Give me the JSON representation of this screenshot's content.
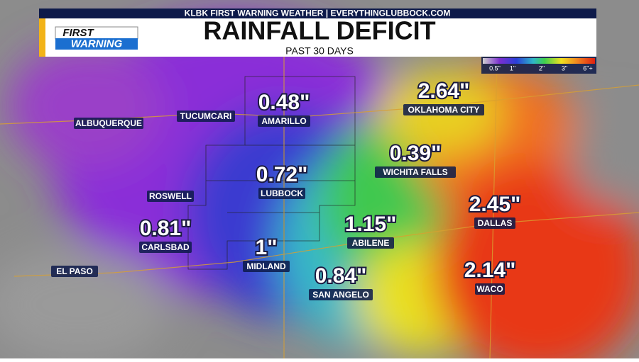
{
  "header": {
    "top_line": "KLBK FIRST WARNING WEATHER | EVERYTHINGLUBBOCK.COM",
    "title": "RAINFALL DEFICIT",
    "subtitle": "PAST 30 DAYS"
  },
  "logo": {
    "line1": "FIRST",
    "line2": "WARNING"
  },
  "legend": {
    "labels": [
      "0.5\"",
      "1\"",
      "2\"",
      "3\"",
      "6\"+"
    ]
  },
  "cities": [
    {
      "name": "AMARILLO",
      "value": "0.48\""
    },
    {
      "name": "TUCUMCARI"
    },
    {
      "name": "ALBUQUERQUE"
    },
    {
      "name": "OKLAHOMA CITY",
      "value": "2.64\""
    },
    {
      "name": "WICHITA FALLS",
      "value": "0.39\""
    },
    {
      "name": "LUBBOCK",
      "value": "0.72\""
    },
    {
      "name": "ROSWELL"
    },
    {
      "name": "DALLAS",
      "value": "2.45\""
    },
    {
      "name": "ABILENE",
      "value": "1.15\""
    },
    {
      "name": "CARLSBAD",
      "value": "0.81\""
    },
    {
      "name": "MIDLAND",
      "value": "1\""
    },
    {
      "name": "EL PASO"
    },
    {
      "name": "SAN ANGELO",
      "value": "0.84\""
    },
    {
      "name": "WACO",
      "value": "2.14\""
    }
  ]
}
